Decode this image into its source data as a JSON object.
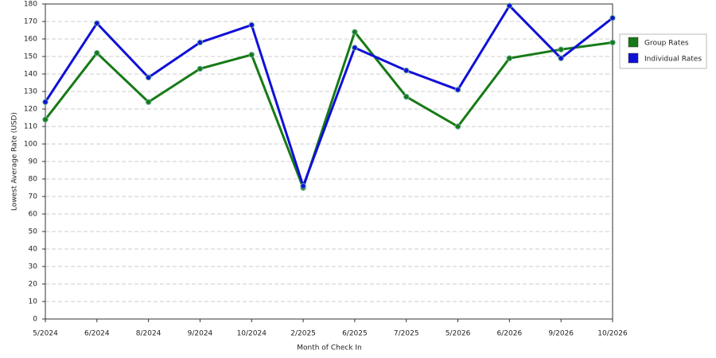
{
  "chart_data": {
    "type": "line",
    "x_label": "Month of Check In",
    "y_label": "Lowest Average Rate (USD)",
    "categories": [
      "5/2024",
      "6/2024",
      "8/2024",
      "9/2024",
      "10/2024",
      "2/2025",
      "6/2025",
      "7/2025",
      "5/2026",
      "6/2026",
      "9/2026",
      "10/2026"
    ],
    "series": [
      {
        "name": "Group Rates",
        "color": "#167a16",
        "values": [
          114,
          152,
          124,
          143,
          151,
          75,
          164,
          127,
          110,
          149,
          154,
          158
        ]
      },
      {
        "name": "Individual Rates",
        "color": "#1010d8",
        "values": [
          124,
          169,
          138,
          158,
          168,
          76,
          155,
          142,
          131,
          179,
          149,
          172
        ]
      }
    ],
    "ylim": [
      0,
      180
    ],
    "yticks": [
      0,
      10,
      20,
      30,
      40,
      50,
      60,
      70,
      80,
      90,
      100,
      110,
      120,
      130,
      140,
      150,
      160,
      170,
      180
    ],
    "grid": true,
    "legend": "right"
  }
}
